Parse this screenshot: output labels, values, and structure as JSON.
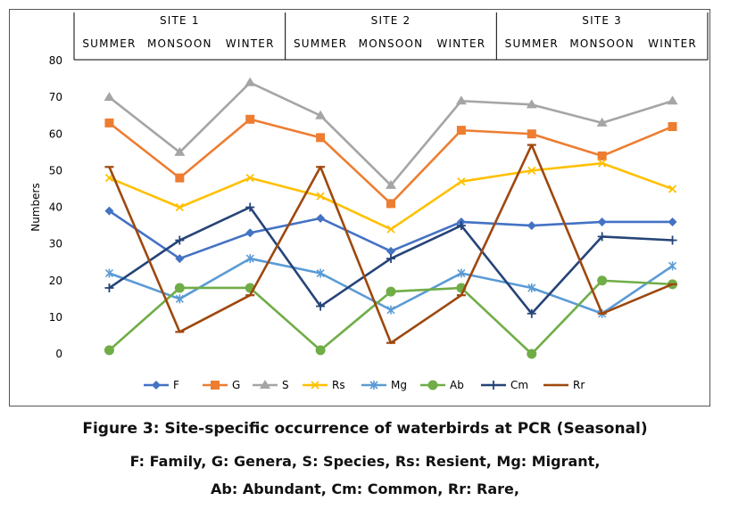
{
  "chart_data": {
    "type": "line",
    "ylabel": "Numbers",
    "ylim": [
      0,
      80
    ],
    "yticks": [
      0,
      10,
      20,
      30,
      40,
      50,
      60,
      70,
      80
    ],
    "grid": false,
    "legend_position": "bottom",
    "sites": [
      "SITE 1",
      "SITE 2",
      "SITE 3"
    ],
    "seasons": [
      "SUMMER",
      "MONSOON",
      "WINTER"
    ],
    "categories": [
      "Site 1 Summer",
      "Site 1 Monsoon",
      "Site 1 Winter",
      "Site 2 Summer",
      "Site 2 Monsoon",
      "Site 2 Winter",
      "Site 3 Summer",
      "Site 3 Monsoon",
      "Site 3 Winter"
    ],
    "series": [
      {
        "name": "F",
        "color": "#4472C4",
        "marker": "diamond",
        "values": [
          39,
          26,
          33,
          37,
          28,
          36,
          35,
          36,
          36
        ]
      },
      {
        "name": "G",
        "color": "#ED7D31",
        "marker": "square",
        "values": [
          63,
          48,
          64,
          59,
          41,
          61,
          60,
          54,
          62
        ]
      },
      {
        "name": "S",
        "color": "#A5A5A5",
        "marker": "triangle",
        "values": [
          70,
          55,
          74,
          65,
          46,
          69,
          68,
          63,
          69
        ]
      },
      {
        "name": "Rs",
        "color": "#FFC000",
        "marker": "x",
        "values": [
          48,
          40,
          48,
          43,
          34,
          47,
          50,
          52,
          45
        ]
      },
      {
        "name": "Mg",
        "color": "#5B9BD5",
        "marker": "star",
        "values": [
          22,
          15,
          26,
          22,
          12,
          22,
          18,
          11,
          24
        ]
      },
      {
        "name": "Ab",
        "color": "#70AD47",
        "marker": "circle",
        "values": [
          1,
          18,
          18,
          1,
          17,
          18,
          0,
          20,
          19
        ]
      },
      {
        "name": "Cm",
        "color": "#264478",
        "marker": "plus",
        "values": [
          18,
          31,
          40,
          13,
          26,
          35,
          11,
          32,
          31
        ]
      },
      {
        "name": "Rr",
        "color": "#9E480E",
        "marker": "dash",
        "values": [
          51,
          6,
          16,
          51,
          3,
          16,
          57,
          11,
          19
        ]
      }
    ]
  },
  "caption": {
    "title": "Figure 3: Site-specific occurrence of waterbirds at PCR (Seasonal)",
    "line2": "F: Family, G: Genera, S: Species, Rs: Resient, Mg: Migrant,",
    "line3": "Ab: Abundant, Cm: Common, Rr: Rare,"
  }
}
